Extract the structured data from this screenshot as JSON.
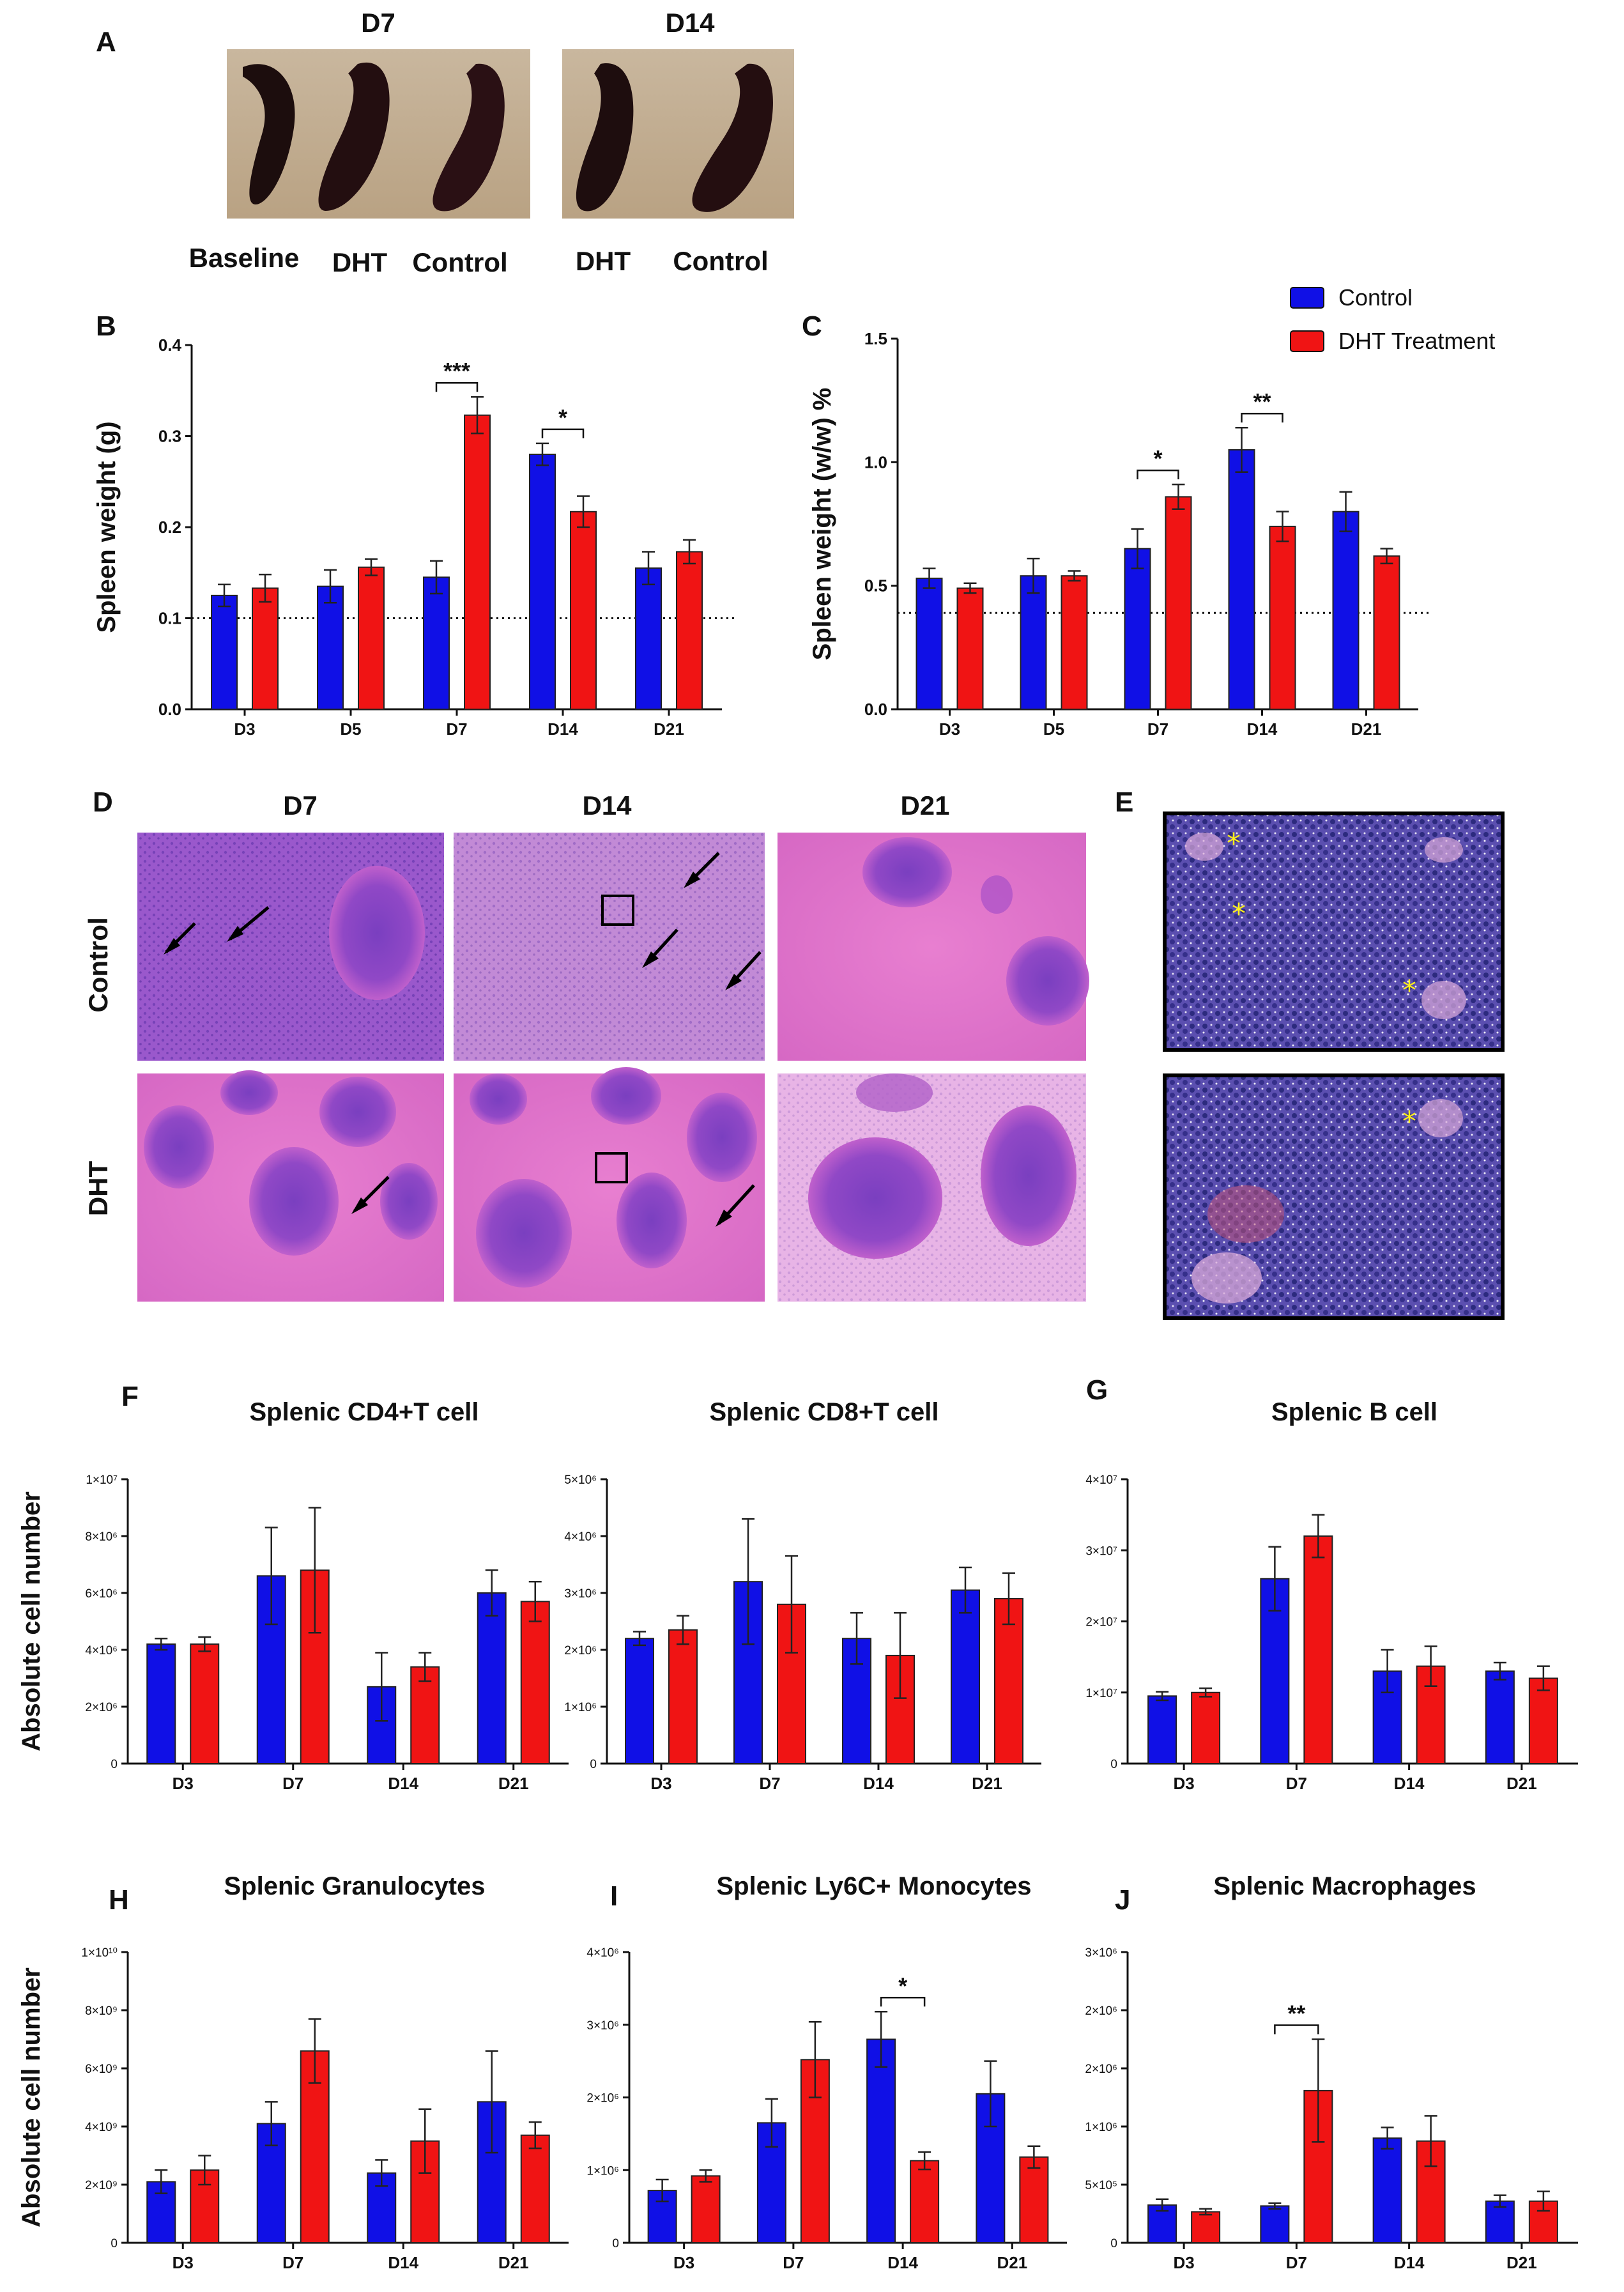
{
  "colors": {
    "control": "#1010e6",
    "dht": "#f01414"
  },
  "legend": {
    "items": [
      "Control",
      "DHT Treatment"
    ]
  },
  "panel_a": {
    "label": "A",
    "groups": [
      "D7",
      "D14"
    ],
    "captions": [
      "Baseline",
      "DHT",
      "Control",
      "DHT",
      "Control"
    ]
  },
  "panel_d": {
    "label": "D",
    "columns": [
      "D7",
      "D14",
      "D21"
    ],
    "rows": [
      "Control",
      "DHT"
    ]
  },
  "panel_e": {
    "label": "E"
  },
  "chart_data": [
    {
      "id": "B",
      "label": "B",
      "type": "bar",
      "title": "",
      "ylabel": "Spleen weight (g)",
      "ylim": [
        0,
        0.4
      ],
      "yticks": [
        "0.0",
        "0.1",
        "0.2",
        "0.3",
        "0.4"
      ],
      "categories": [
        "D3",
        "D5",
        "D7",
        "D14",
        "D21"
      ],
      "baseline": 0.1,
      "series": [
        {
          "name": "Control",
          "values": [
            0.125,
            0.135,
            0.145,
            0.28,
            0.155
          ],
          "errors": [
            0.012,
            0.018,
            0.018,
            0.012,
            0.018
          ]
        },
        {
          "name": "DHT Treatment",
          "values": [
            0.133,
            0.156,
            0.323,
            0.217,
            0.173
          ],
          "errors": [
            0.015,
            0.009,
            0.02,
            0.017,
            0.013
          ]
        }
      ],
      "significance": [
        {
          "category": "D7",
          "text": "***"
        },
        {
          "category": "D14",
          "text": "*"
        }
      ]
    },
    {
      "id": "C",
      "label": "C",
      "type": "bar",
      "title": "",
      "ylabel": "Spleen weight (w/w) %",
      "ylim": [
        0,
        1.5
      ],
      "yticks": [
        "0.0",
        "0.5",
        "1.0",
        "1.5"
      ],
      "categories": [
        "D3",
        "D5",
        "D7",
        "D14",
        "D21"
      ],
      "baseline": 0.39,
      "series": [
        {
          "name": "Control",
          "values": [
            0.53,
            0.54,
            0.65,
            1.05,
            0.8
          ],
          "errors": [
            0.04,
            0.07,
            0.08,
            0.09,
            0.08
          ]
        },
        {
          "name": "DHT Treatment",
          "values": [
            0.49,
            0.54,
            0.86,
            0.74,
            0.62
          ],
          "errors": [
            0.02,
            0.02,
            0.05,
            0.06,
            0.03
          ]
        }
      ],
      "significance": [
        {
          "category": "D7",
          "text": "*"
        },
        {
          "category": "D14",
          "text": "**"
        }
      ]
    },
    {
      "id": "F1",
      "label": "F",
      "type": "bar",
      "title": "Splenic CD4+T cell",
      "ylabel": "Absolute cell number",
      "ylim": [
        0,
        10000000
      ],
      "yticks": [
        "0",
        "2×10⁶",
        "4×10⁶",
        "6×10⁶",
        "8×10⁶",
        "1×10⁷"
      ],
      "categories": [
        "D3",
        "D7",
        "D14",
        "D21"
      ],
      "series": [
        {
          "name": "Control",
          "values": [
            4200000,
            6600000,
            2700000,
            6000000
          ],
          "errors": [
            200000,
            1700000,
            1200000,
            800000
          ]
        },
        {
          "name": "DHT Treatment",
          "values": [
            4200000,
            6800000,
            3400000,
            5700000
          ],
          "errors": [
            250000,
            2200000,
            500000,
            700000
          ]
        }
      ],
      "significance": []
    },
    {
      "id": "F2",
      "label": "",
      "type": "bar",
      "title": "Splenic CD8+T cell",
      "ylabel": "",
      "ylim": [
        0,
        5000000
      ],
      "yticks": [
        "0",
        "1×10⁶",
        "2×10⁶",
        "3×10⁶",
        "4×10⁶",
        "5×10⁶"
      ],
      "categories": [
        "D3",
        "D7",
        "D14",
        "D21"
      ],
      "series": [
        {
          "name": "Control",
          "values": [
            2200000,
            3200000,
            2200000,
            3050000
          ],
          "errors": [
            120000,
            1100000,
            450000,
            400000
          ]
        },
        {
          "name": "DHT Treatment",
          "values": [
            2350000,
            2800000,
            1900000,
            2900000
          ],
          "errors": [
            250000,
            850000,
            750000,
            450000
          ]
        }
      ],
      "significance": []
    },
    {
      "id": "G",
      "label": "G",
      "type": "bar",
      "title": "Splenic B cell",
      "ylabel": "",
      "ylim": [
        0,
        40000000
      ],
      "yticks": [
        "0",
        "1×10⁷",
        "2×10⁷",
        "3×10⁷",
        "4×10⁷"
      ],
      "categories": [
        "D3",
        "D7",
        "D14",
        "D21"
      ],
      "series": [
        {
          "name": "Control",
          "values": [
            9500000,
            26000000,
            13000000,
            13000000
          ],
          "errors": [
            600000,
            4500000,
            3000000,
            1200000
          ]
        },
        {
          "name": "DHT Treatment",
          "values": [
            10000000,
            32000000,
            13700000,
            12000000
          ],
          "errors": [
            600000,
            3000000,
            2800000,
            1700000
          ]
        }
      ],
      "significance": []
    },
    {
      "id": "H",
      "label": "H",
      "type": "bar",
      "title": "Splenic Granulocytes",
      "ylabel": "Absolute cell number",
      "ylim": [
        0,
        10000000000
      ],
      "yticks": [
        "0",
        "2×10⁹",
        "4×10⁹",
        "6×10⁹",
        "8×10⁹",
        "1×10¹⁰"
      ],
      "categories": [
        "D3",
        "D7",
        "D14",
        "D21"
      ],
      "series": [
        {
          "name": "Control",
          "values": [
            2100000000,
            4100000000,
            2400000000,
            4850000000
          ],
          "errors": [
            400000000,
            750000000,
            450000000,
            1750000000
          ]
        },
        {
          "name": "DHT Treatment",
          "values": [
            2500000000,
            6600000000,
            3500000000,
            3700000000
          ],
          "errors": [
            500000000,
            1100000000,
            1100000000,
            450000000
          ]
        }
      ],
      "significance": []
    },
    {
      "id": "I",
      "label": "I",
      "type": "bar",
      "title": "Splenic Ly6C+ Monocytes",
      "ylabel": "",
      "ylim": [
        0,
        4000000
      ],
      "yticks": [
        "0",
        "1×10⁶",
        "2×10⁶",
        "3×10⁶",
        "4×10⁶"
      ],
      "categories": [
        "D3",
        "D7",
        "D14",
        "D21"
      ],
      "series": [
        {
          "name": "Control",
          "values": [
            720000,
            1650000,
            2800000,
            2050000
          ],
          "errors": [
            150000,
            330000,
            380000,
            450000
          ]
        },
        {
          "name": "DHT Treatment",
          "values": [
            920000,
            2520000,
            1130000,
            1180000
          ],
          "errors": [
            80000,
            520000,
            120000,
            150000
          ]
        }
      ],
      "significance": [
        {
          "category": "D14",
          "text": "*"
        }
      ]
    },
    {
      "id": "J",
      "label": "J",
      "type": "bar",
      "title": "Splenic Macrophages",
      "ylabel": "",
      "ylim": [
        0,
        3000000
      ],
      "yticks": [
        "0",
        "5×10⁵",
        "1×10⁶",
        "2×10⁶",
        "2×10⁶",
        "3×10⁶"
      ],
      "categories": [
        "D3",
        "D7",
        "D14",
        "D21"
      ],
      "series": [
        {
          "name": "Control",
          "values": [
            390000,
            380000,
            1080000,
            430000
          ],
          "errors": [
            60000,
            30000,
            110000,
            60000
          ]
        },
        {
          "name": "DHT Treatment",
          "values": [
            320000,
            1570000,
            1050000,
            430000
          ],
          "errors": [
            30000,
            530000,
            260000,
            100000
          ]
        }
      ],
      "significance": [
        {
          "category": "D7",
          "text": "**"
        }
      ]
    }
  ]
}
